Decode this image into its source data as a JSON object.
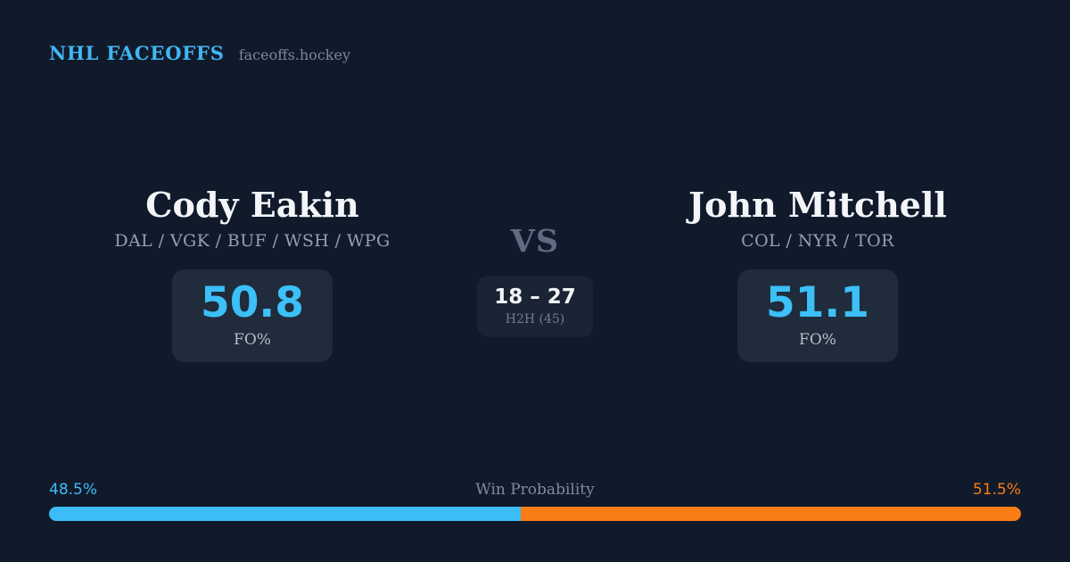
{
  "header": {
    "brand": "NHL FACEOFFS",
    "site": "faceoffs.hockey"
  },
  "matchup": {
    "vs_label": "VS",
    "h2h": {
      "score": "18 – 27",
      "label": "H2H (45)"
    },
    "player_left": {
      "name": "Cody Eakin",
      "teams": "DAL / VGK / BUF / WSH / WPG",
      "stat_value": "50.8",
      "stat_label": "FO%"
    },
    "player_right": {
      "name": "John Mitchell",
      "teams": "COL / NYR / TOR",
      "stat_value": "51.1",
      "stat_label": "FO%"
    }
  },
  "win_probability": {
    "title": "Win Probability",
    "left_pct": 48.5,
    "right_pct": 51.5,
    "left_pct_label": "48.5%",
    "right_pct_label": "51.5%",
    "left_color": "#3cbdf8",
    "right_color": "#f97d14"
  },
  "colors": {
    "background": "#111a2b",
    "accent_blue": "#3cc0f8",
    "accent_orange": "#f97d14",
    "stat_box_bg": "#202b3b",
    "h2h_box_bg": "#1b2434",
    "name_text": "#f3f5f8",
    "muted_text": "#91a0b6"
  }
}
